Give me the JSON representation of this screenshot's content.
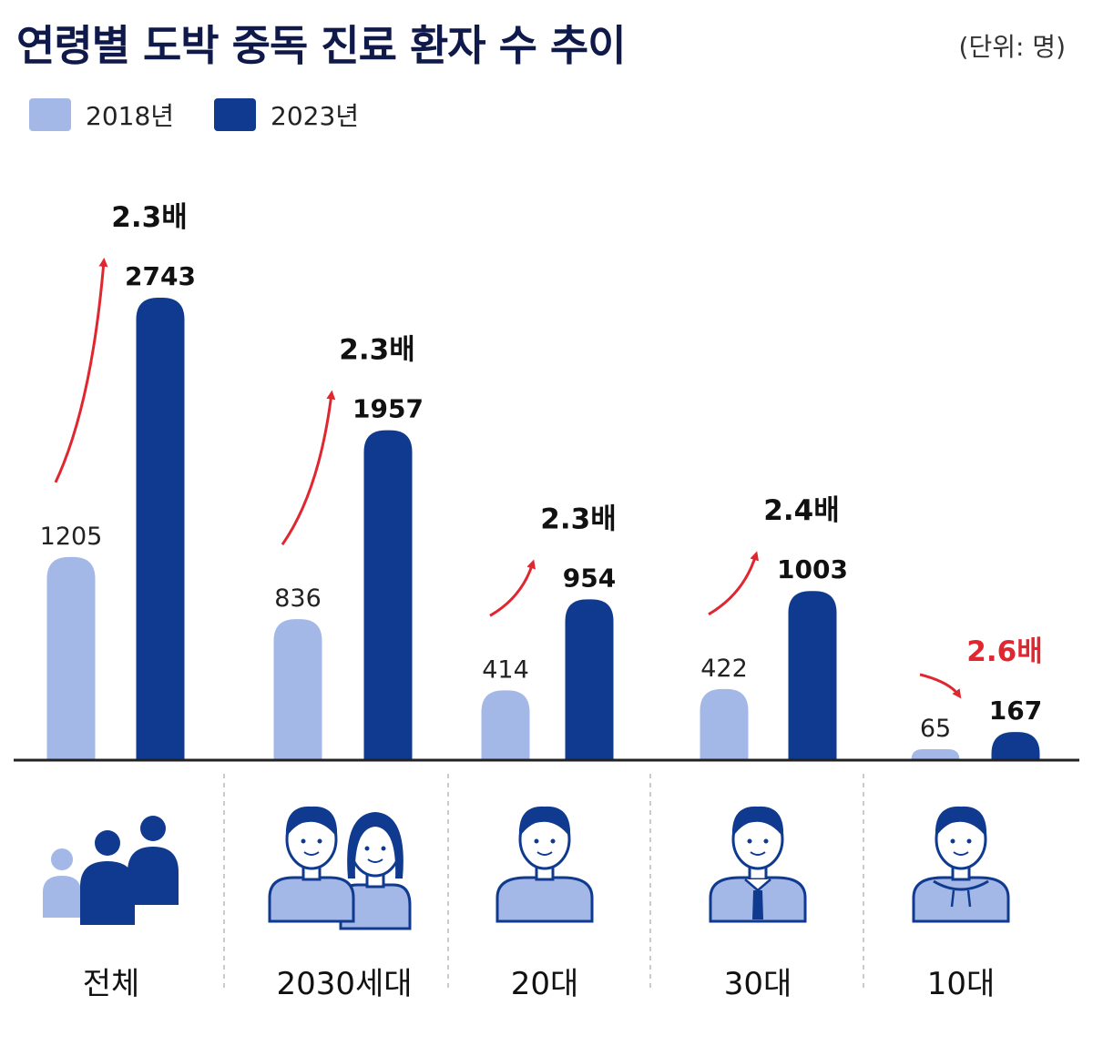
{
  "title": "연령별 도박 중독 진료 환자 수 추이",
  "unit_label": "(단위: 명)",
  "colors": {
    "series_2018": "#a3b8e6",
    "series_2023": "#0f3a8f",
    "ratio_highlight": "#e0262f",
    "arrow": "#e0262f",
    "text": "#111111"
  },
  "chart_data": {
    "type": "bar",
    "title": "연령별 도박 중독 진료 환자 수 추이",
    "categories": [
      "전체",
      "2030세대",
      "20대",
      "30대",
      "10대"
    ],
    "series": [
      {
        "name": "2018년",
        "values": [
          1205,
          836,
          414,
          422,
          65
        ]
      },
      {
        "name": "2023년",
        "values": [
          2743,
          1957,
          954,
          1003,
          167
        ]
      }
    ],
    "ratios": [
      "2.3배",
      "2.3배",
      "2.3배",
      "2.4배",
      "2.6배"
    ],
    "highlighted_ratio_index": 4,
    "category_icons": [
      "group-people-icon",
      "couple-icon",
      "young-man-icon",
      "man-with-tie-icon",
      "teen-hoodie-icon"
    ],
    "ylim": [
      0,
      2743
    ],
    "xlabel": "",
    "ylabel": "",
    "grid": false,
    "legend": "top-left"
  }
}
